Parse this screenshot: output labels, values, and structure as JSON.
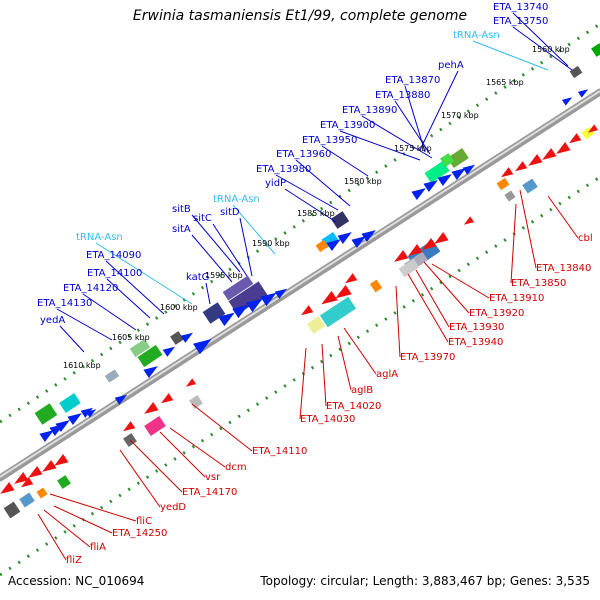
{
  "title": "Erwinia tasmaniensis Et1/99, complete genome",
  "accession": "Accession: NC_010694",
  "summary": "Topology: circular; Length: 3,883,467 bp; Genes: 3,535",
  "colors": {
    "plus_label": "#0000cc",
    "minus_label": "#cc0000",
    "trna_label": "#33bbee",
    "backbone": "#888888",
    "dots": "#2e8b2e"
  },
  "kbp_ticks": [
    "1560 kbp",
    "1565 kbp",
    "1570 kbp",
    "1575 kbp",
    "1580 kbp",
    "1585 kbp",
    "1590 kbp",
    "1595 kbp",
    "1600 kbp",
    "1605 kbp",
    "1610 kbp"
  ],
  "plus_labels": [
    {
      "text": "ETA_13740",
      "type": "gene"
    },
    {
      "text": "ETA_13750",
      "type": "gene"
    },
    {
      "text": "tRNA-Asn",
      "type": "trna"
    },
    {
      "text": "pehA",
      "type": "gene"
    },
    {
      "text": "ETA_13870",
      "type": "gene"
    },
    {
      "text": "ETA_13880",
      "type": "gene"
    },
    {
      "text": "ETA_13890",
      "type": "gene"
    },
    {
      "text": "ETA_13900",
      "type": "gene"
    },
    {
      "text": "ETA_13950",
      "type": "gene"
    },
    {
      "text": "ETA_13960",
      "type": "gene"
    },
    {
      "text": "ETA_13980",
      "type": "gene"
    },
    {
      "text": "yidP",
      "type": "gene"
    },
    {
      "text": "tRNA-Asn",
      "type": "trna"
    },
    {
      "text": "sitB",
      "type": "gene"
    },
    {
      "text": "sitC",
      "type": "gene"
    },
    {
      "text": "sitD",
      "type": "gene"
    },
    {
      "text": "sitA",
      "type": "gene"
    },
    {
      "text": "katG",
      "type": "gene"
    },
    {
      "text": "tRNA-Asn",
      "type": "trna"
    },
    {
      "text": "ETA_14090",
      "type": "gene"
    },
    {
      "text": "ETA_14100",
      "type": "gene"
    },
    {
      "text": "ETA_14120",
      "type": "gene"
    },
    {
      "text": "ETA_14130",
      "type": "gene"
    },
    {
      "text": "yedA",
      "type": "gene"
    }
  ],
  "minus_labels": [
    {
      "text": "cbl"
    },
    {
      "text": "ETA_13840"
    },
    {
      "text": "ETA_13850"
    },
    {
      "text": "ETA_13910"
    },
    {
      "text": "ETA_13920"
    },
    {
      "text": "ETA_13930"
    },
    {
      "text": "ETA_13940"
    },
    {
      "text": "ETA_13970"
    },
    {
      "text": "aglA"
    },
    {
      "text": "aglB"
    },
    {
      "text": "ETA_14020"
    },
    {
      "text": "ETA_14030"
    },
    {
      "text": "ETA_14110"
    },
    {
      "text": "dcm"
    },
    {
      "text": "vsr"
    },
    {
      "text": "ETA_14170"
    },
    {
      "text": "yedD"
    },
    {
      "text": "fliC"
    },
    {
      "text": "ETA_14250"
    },
    {
      "text": "fliA"
    },
    {
      "text": "fliZ"
    }
  ]
}
